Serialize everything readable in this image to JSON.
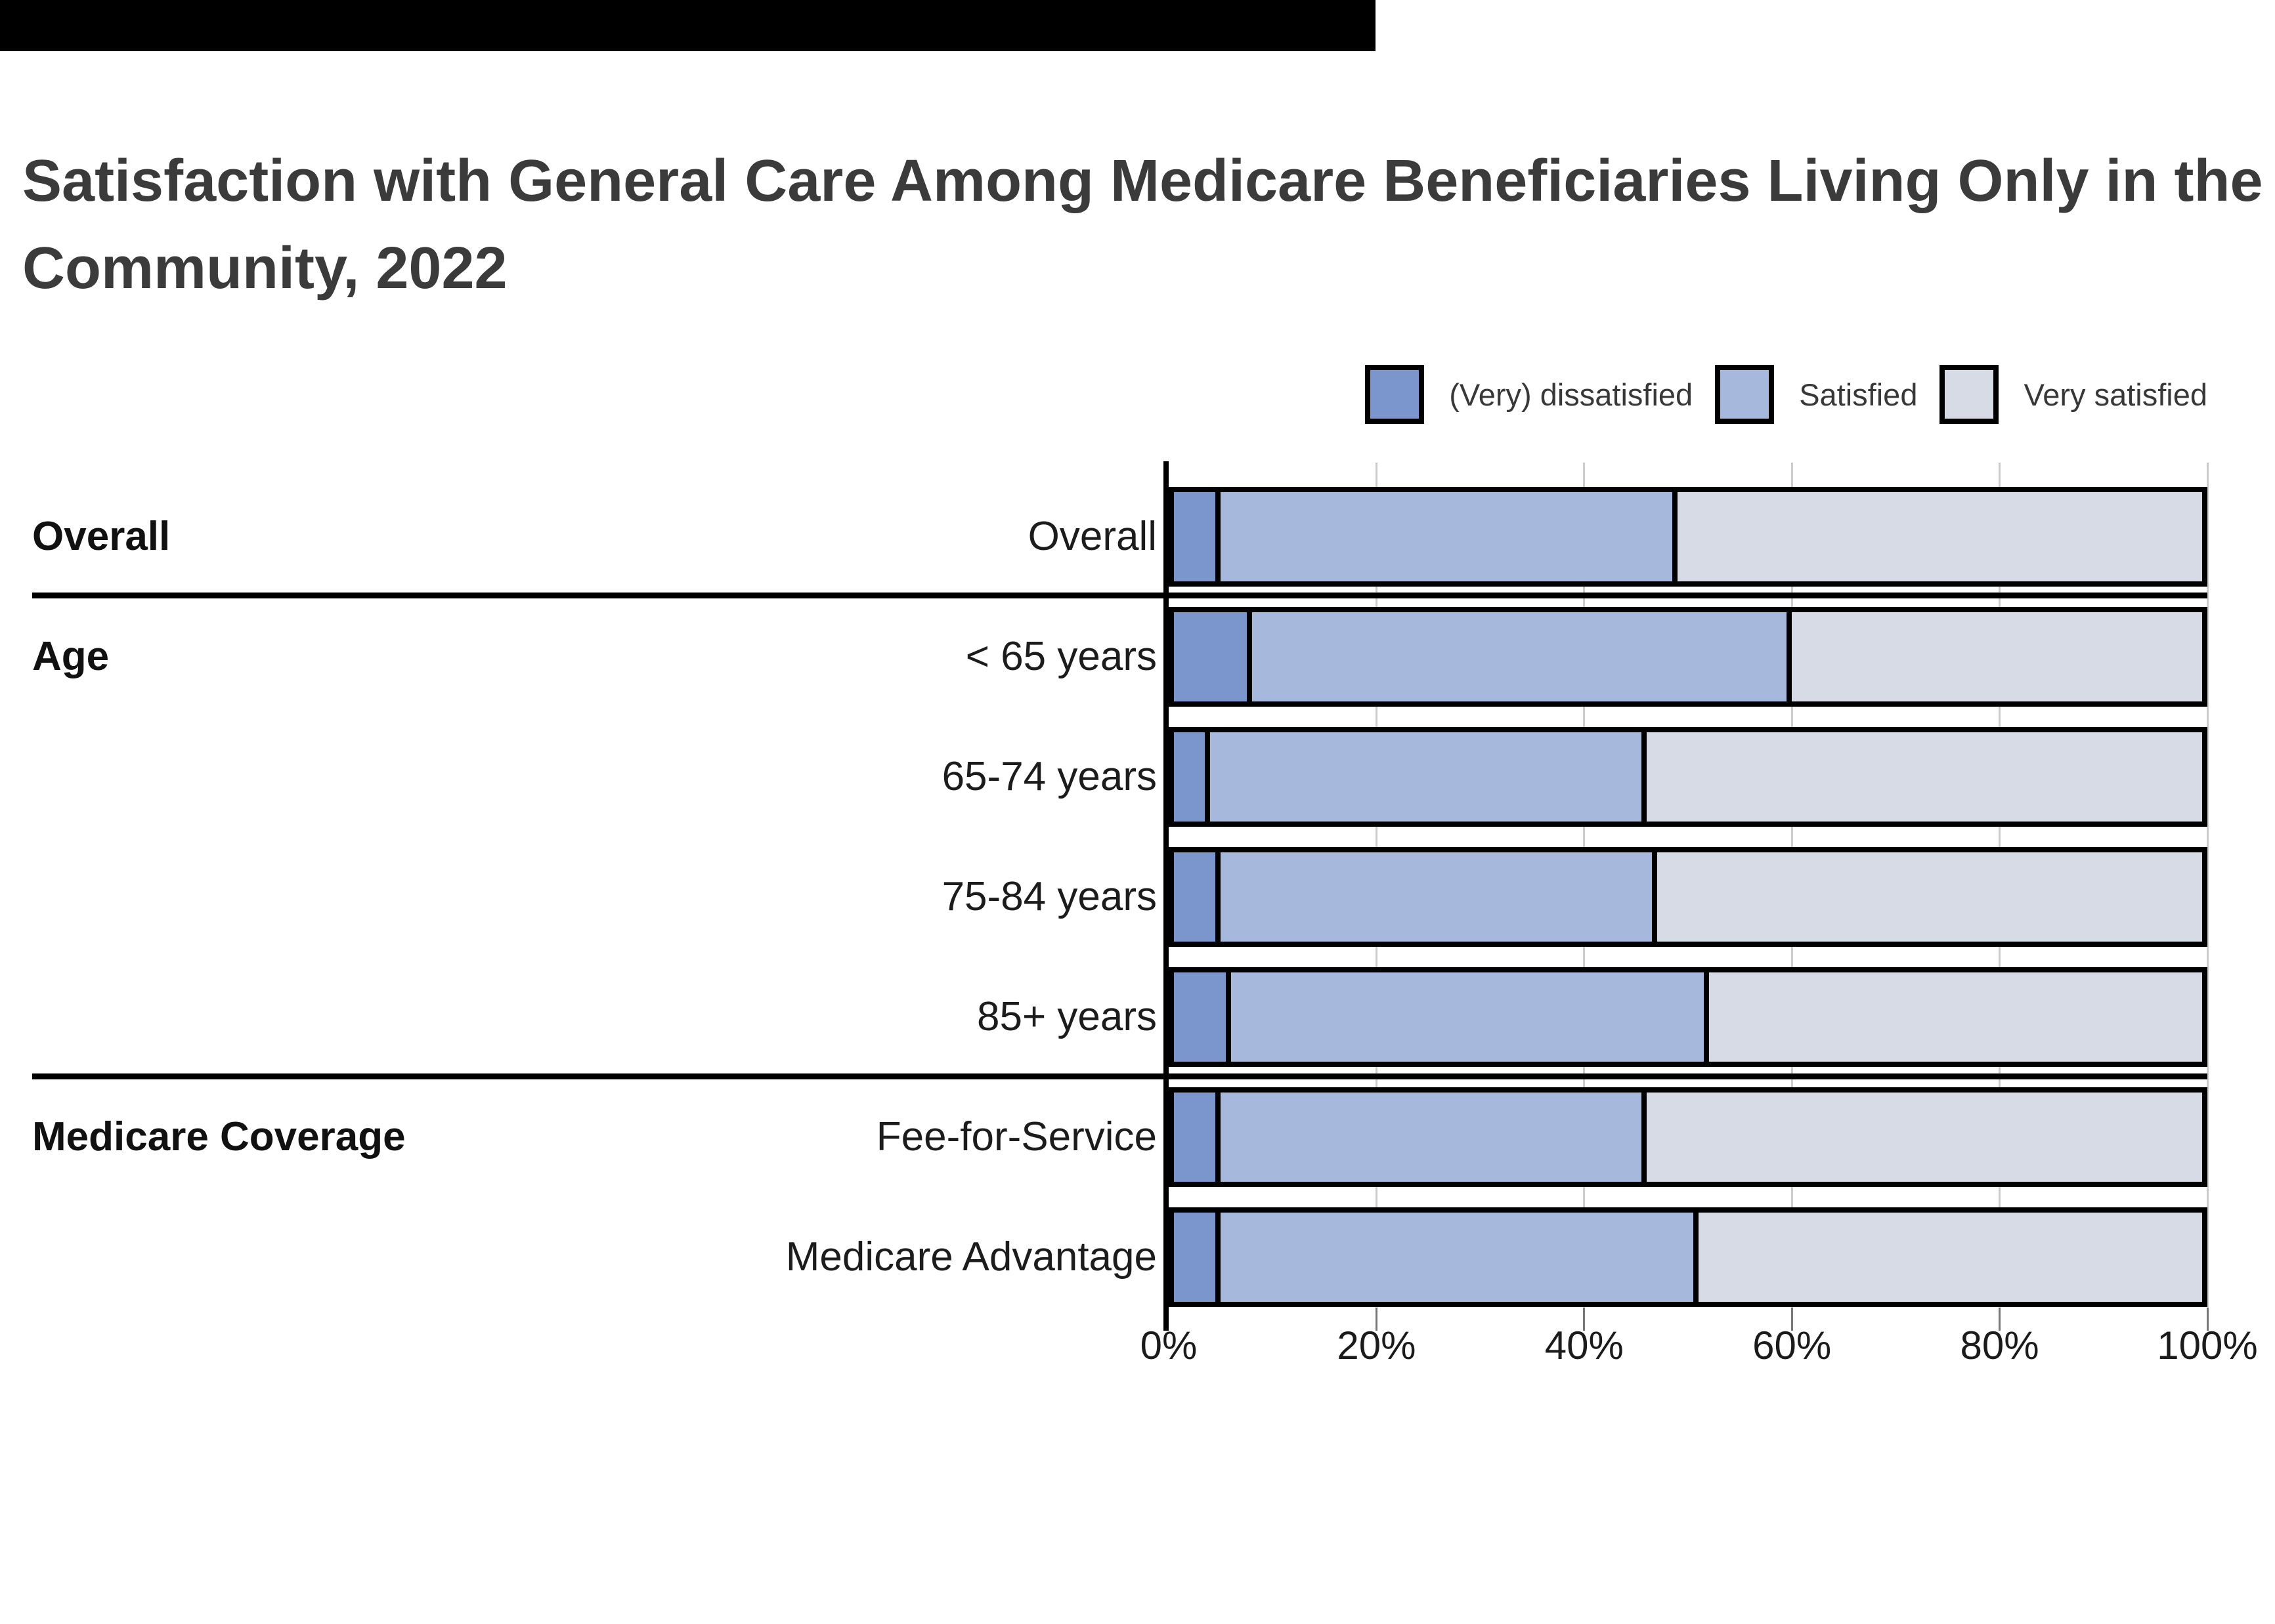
{
  "page": {
    "title_lines": [
      "Satisfaction with General Care Among Medicare Beneficiaries Living Only in the",
      "Community, 2022"
    ]
  },
  "chart_data": {
    "type": "bar",
    "orientation": "horizontal",
    "stacked": true,
    "title": "Satisfaction with General Care Among Medicare Beneficiaries Living Only in the Community, 2022",
    "xlabel": "",
    "ylabel": "",
    "xlim": [
      0,
      100
    ],
    "xticks": [
      "0%",
      "20%",
      "40%",
      "60%",
      "80%",
      "100%"
    ],
    "grid": "vertical-light-gray",
    "legend_position": "top-right",
    "categories": [
      "Overall",
      "< 65 years",
      "65-74 years",
      "75-84 years",
      "85+ years",
      "Fee-for-Service",
      "Medicare Advantage"
    ],
    "groups": [
      {
        "label": "Overall",
        "first_row": 0
      },
      {
        "label": "Age",
        "first_row": 1
      },
      {
        "label": "Medicare Coverage",
        "first_row": 5
      }
    ],
    "series": [
      {
        "name": "(Very) dissatisfied",
        "color": "#7b95cd",
        "values": [
          5,
          8,
          4,
          5,
          6,
          5,
          5
        ]
      },
      {
        "name": "Satisfied",
        "color": "#a6b9dc",
        "values": [
          44,
          52,
          42,
          42,
          46,
          41,
          46
        ]
      },
      {
        "name": "Very satisfied",
        "color": "#d6dbe5",
        "values": [
          51,
          40,
          54,
          53,
          48,
          54,
          49
        ]
      }
    ],
    "bar_border_color": "#000000",
    "section_divider_color": "#000000"
  }
}
